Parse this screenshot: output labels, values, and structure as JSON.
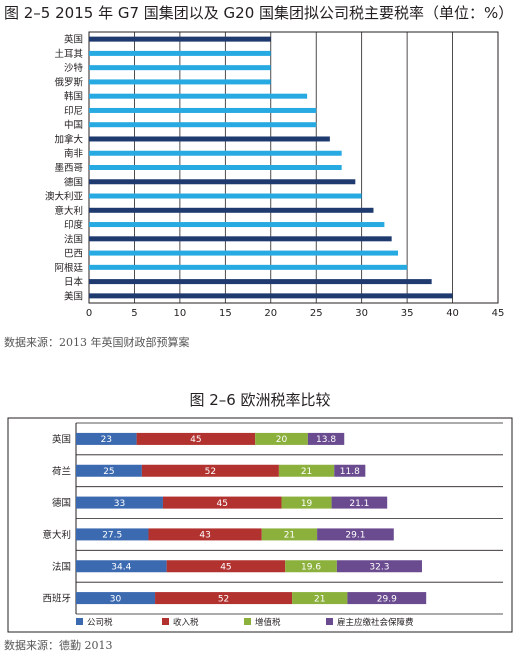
{
  "titles": {
    "chart1": "图 2–5 2015 年 G7 国集团以及 G20 国集团拟公司税主要税率（单位：%）",
    "chart2": "图 2–6 欧洲税率比较"
  },
  "sources": {
    "chart1": "数据来源：2013 年英国财政部预算案",
    "chart2": "数据来源：德勤 2013"
  },
  "colors": {
    "dark_bar": "#1f3a6e",
    "light_bar": "#27a9e1",
    "corp": "#3c6ab0",
    "income": "#b2322f",
    "vat": "#8bb03c",
    "social": "#6a4b8f"
  },
  "chart_data": [
    {
      "type": "bar",
      "orientation": "horizontal",
      "title": "图 2–5 2015 年 G7 国集团以及 G20 国集团拟公司税主要税率（单位：%）",
      "categories": [
        "英国",
        "土耳其",
        "沙特",
        "俄罗斯",
        "韩国",
        "印尼",
        "中国",
        "加拿大",
        "南非",
        "墨西哥",
        "德国",
        "澳大利亚",
        "意大利",
        "印度",
        "法国",
        "巴西",
        "阿根廷",
        "日本",
        "美国"
      ],
      "values": [
        20,
        20,
        20,
        20,
        24,
        25,
        25,
        26.5,
        27.8,
        27.8,
        29.3,
        30,
        31.3,
        32.5,
        33.3,
        34,
        35,
        37.7,
        40
      ],
      "g7": [
        true,
        false,
        false,
        false,
        false,
        false,
        false,
        true,
        false,
        false,
        true,
        false,
        true,
        false,
        true,
        false,
        false,
        true,
        true
      ],
      "xlim": [
        0,
        45
      ],
      "xticks": [
        0,
        5,
        10,
        15,
        20,
        25,
        30,
        35,
        40,
        45
      ],
      "grid": true
    },
    {
      "type": "bar",
      "orientation": "horizontal",
      "stacked": true,
      "title": "图 2–6 欧洲税率比较",
      "categories": [
        "英国",
        "荷兰",
        "德国",
        "意大利",
        "法国",
        "西班牙"
      ],
      "series": [
        {
          "name": "公司税",
          "values": [
            23,
            25,
            33,
            27.5,
            34.4,
            30
          ]
        },
        {
          "name": "收入税",
          "values": [
            45,
            52,
            45,
            43,
            45,
            52
          ]
        },
        {
          "name": "增值税",
          "values": [
            20,
            21,
            19,
            21,
            19.6,
            21
          ]
        },
        {
          "name": "雇主应缴社会保障费",
          "values": [
            13.8,
            11.8,
            21.1,
            29.1,
            32.3,
            29.9
          ]
        }
      ],
      "labels": [
        [
          "23",
          "45",
          "20",
          "13.8"
        ],
        [
          "25",
          "52",
          "21",
          "11.8"
        ],
        [
          "33",
          "45",
          "19",
          "21.1"
        ],
        [
          "27.5",
          "43",
          "21",
          "29.1"
        ],
        [
          "34.4",
          "45",
          "19.6",
          "32.3"
        ],
        [
          "30",
          "52",
          "21",
          "29.9"
        ]
      ],
      "legend": "bottom"
    }
  ]
}
